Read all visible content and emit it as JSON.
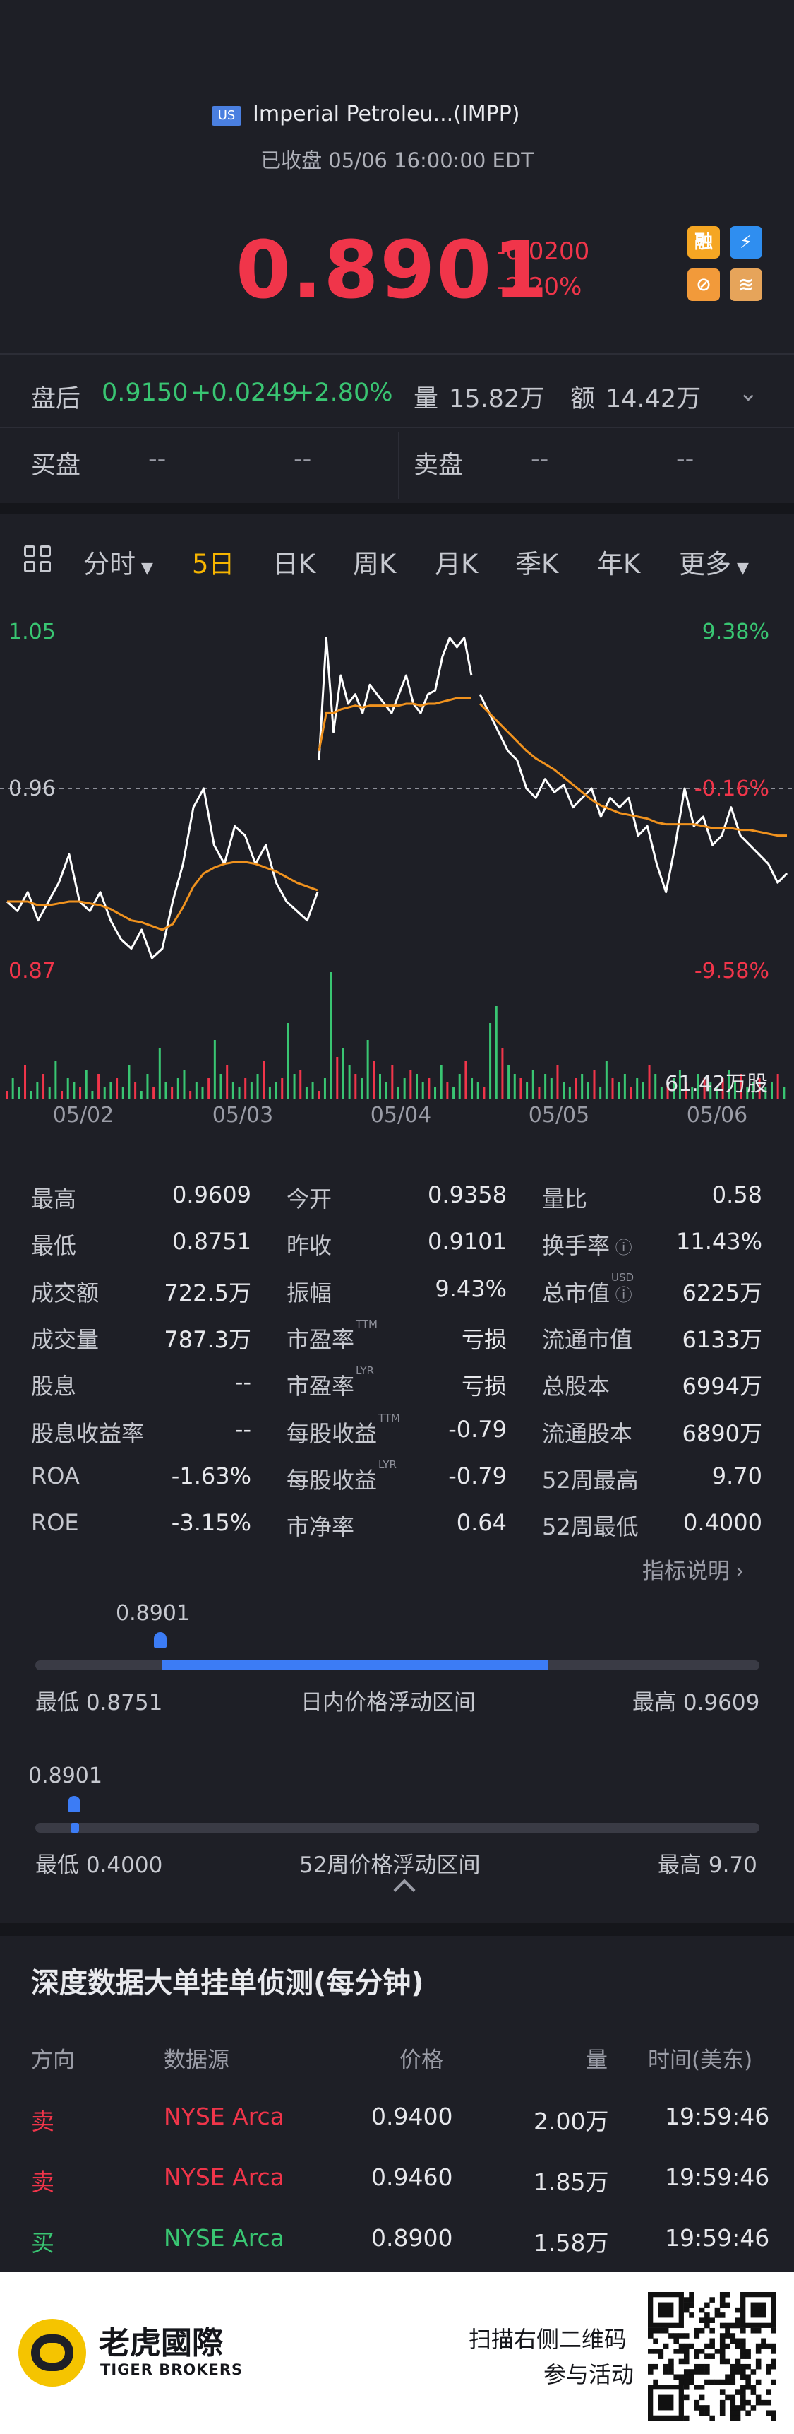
{
  "header": {
    "market": "US",
    "title": "Imperial Petroleu...(IMPP)",
    "status": "已收盘 05/06 16:00:00 EDT",
    "price": "0.8901",
    "change": "-0.0200",
    "change_pct": "-2.20%",
    "icons": [
      {
        "name": "margin-icon",
        "label": "融",
        "color": "#f5a623"
      },
      {
        "name": "lightning-icon",
        "label": "⚡",
        "color": "#2f8ef0"
      },
      {
        "name": "no-short-icon",
        "label": "⊘",
        "color": "#f29a3a"
      },
      {
        "name": "stack-icon",
        "label": "≋",
        "color": "#e6a45a"
      }
    ]
  },
  "after_hours": {
    "label": "盘后",
    "price": "0.9150",
    "change": "+0.0249",
    "change_pct": "+2.80%",
    "volume_label": "量",
    "volume": "15.82万",
    "amount_label": "额",
    "amount": "14.42万"
  },
  "order_book": {
    "bid_label": "买盘",
    "bid_values": [
      "--",
      "--"
    ],
    "ask_label": "卖盘",
    "ask_values": [
      "--",
      "--"
    ]
  },
  "tabs": [
    {
      "label": "分时",
      "has_dropdown": true,
      "active": false
    },
    {
      "label": "5日",
      "active": true
    },
    {
      "label": "日K",
      "active": false
    },
    {
      "label": "周K",
      "active": false
    },
    {
      "label": "月K",
      "active": false
    },
    {
      "label": "季K",
      "active": false
    },
    {
      "label": "年K",
      "active": false
    },
    {
      "label": "更多",
      "has_dropdown": true,
      "active": false
    }
  ],
  "chart_data": {
    "type": "line",
    "ylim": [
      0.87,
      1.05
    ],
    "y_left_labels": [
      "1.05",
      "0.96",
      "0.87"
    ],
    "y_right_labels": [
      "9.38%",
      "-0.16%",
      "-9.58%"
    ],
    "ref_value": 0.96,
    "x_labels": [
      "05/02",
      "05/03",
      "05/04",
      "05/05",
      "05/06"
    ],
    "days": [
      {
        "price": [
          0.9,
          0.895,
          0.905,
          0.89,
          0.9,
          0.91,
          0.925,
          0.9,
          0.895,
          0.905,
          0.89,
          0.88,
          0.875,
          0.885,
          0.87,
          0.875,
          0.9,
          0.92,
          0.95,
          0.96,
          0.93,
          0.92,
          0.94,
          0.935,
          0.92,
          0.93,
          0.91,
          0.9,
          0.895,
          0.89,
          0.905
        ],
        "avg": [
          0.9,
          0.9,
          0.9,
          0.898,
          0.898,
          0.899,
          0.9,
          0.9,
          0.899,
          0.898,
          0.896,
          0.893,
          0.89,
          0.889,
          0.887,
          0.885,
          0.888,
          0.897,
          0.908,
          0.915,
          0.918,
          0.92,
          0.921,
          0.921,
          0.92,
          0.918,
          0.916,
          0.913,
          0.91,
          0.908,
          0.906
        ]
      },
      {
        "price": [
          0.975,
          1.04,
          0.99,
          1.02,
          1.005,
          1.01,
          1.0,
          1.015,
          1.01,
          1.005,
          1.0,
          1.01,
          1.02,
          1.005,
          1.0,
          1.01,
          1.012,
          1.03,
          1.04,
          1.035,
          1.04,
          1.02
        ],
        "avg": [
          0.98,
          1.0,
          1.0,
          1.002,
          1.003,
          1.004,
          1.003,
          1.004,
          1.004,
          1.004,
          1.004,
          1.004,
          1.005,
          1.005,
          1.004,
          1.005,
          1.005,
          1.006,
          1.007,
          1.008,
          1.008,
          1.008
        ]
      },
      {
        "price": [
          1.01,
          1.0,
          0.99,
          0.98,
          0.975,
          0.96,
          0.955,
          0.965,
          0.958,
          0.962,
          0.95,
          0.955,
          0.96,
          0.945,
          0.955,
          0.95,
          0.955,
          0.935,
          0.94,
          0.92,
          0.905,
          0.93,
          0.96,
          0.94,
          0.945,
          0.93,
          0.935,
          0.95,
          0.935,
          0.93,
          0.925,
          0.92,
          0.91,
          0.915
        ],
        "avg": [
          1.005,
          1.0,
          0.995,
          0.99,
          0.985,
          0.98,
          0.976,
          0.973,
          0.97,
          0.966,
          0.962,
          0.958,
          0.954,
          0.951,
          0.949,
          0.947,
          0.946,
          0.945,
          0.944,
          0.942,
          0.941,
          0.941,
          0.941,
          0.941,
          0.94,
          0.939,
          0.939,
          0.939,
          0.938,
          0.938,
          0.937,
          0.936,
          0.935,
          0.935
        ]
      }
    ],
    "volume_label": "61.42万股",
    "volume_bars": [
      2,
      5,
      3,
      8,
      2,
      4,
      6,
      3,
      9,
      2,
      5,
      4,
      3,
      7,
      2,
      6,
      3,
      4,
      5,
      3,
      8,
      4,
      2,
      6,
      3,
      12,
      4,
      3,
      5,
      7,
      2,
      4,
      3,
      5,
      14,
      6,
      8,
      4,
      3,
      5,
      4,
      6,
      9,
      3,
      4,
      5,
      18,
      6,
      7,
      3,
      4,
      2,
      5,
      30,
      10,
      12,
      8,
      6,
      5,
      14,
      9,
      6,
      4,
      8,
      3,
      5,
      7,
      6,
      4,
      5,
      3,
      8,
      4,
      3,
      6,
      9,
      5,
      4,
      3,
      18,
      22,
      12,
      8,
      6,
      5,
      4,
      7,
      3,
      6,
      5,
      8,
      4,
      3,
      5,
      6,
      4,
      7,
      3,
      9,
      5,
      4,
      6,
      3,
      5,
      4,
      8,
      6,
      3,
      4,
      5,
      7,
      4,
      3,
      6,
      5,
      4,
      3,
      5,
      7,
      4,
      6,
      3,
      4,
      5,
      3,
      4,
      6,
      3
    ]
  },
  "stats": [
    [
      {
        "label": "最高",
        "value": "0.9609"
      },
      {
        "label": "今开",
        "value": "0.9358"
      },
      {
        "label": "量比",
        "value": "0.58"
      }
    ],
    [
      {
        "label": "最低",
        "value": "0.8751"
      },
      {
        "label": "昨收",
        "value": "0.9101"
      },
      {
        "label": "换手率",
        "value": "11.43%",
        "info": true
      }
    ],
    [
      {
        "label": "成交额",
        "value": "722.5万"
      },
      {
        "label": "振幅",
        "value": "9.43%"
      },
      {
        "label": "总市值",
        "value": "6225万",
        "sup": "USD",
        "info": true
      }
    ],
    [
      {
        "label": "成交量",
        "value": "787.3万"
      },
      {
        "label": "市盈率",
        "value": "亏损",
        "sup": "TTM"
      },
      {
        "label": "流通市值",
        "value": "6133万"
      }
    ],
    [
      {
        "label": "股息",
        "value": "--"
      },
      {
        "label": "市盈率",
        "value": "亏损",
        "sup": "LYR"
      },
      {
        "label": "总股本",
        "value": "6994万"
      }
    ],
    [
      {
        "label": "股息收益率",
        "value": "--"
      },
      {
        "label": "每股收益",
        "value": "-0.79",
        "sup": "TTM"
      },
      {
        "label": "流通股本",
        "value": "6890万"
      }
    ],
    [
      {
        "label": "ROA",
        "value": "-1.63%"
      },
      {
        "label": "每股收益",
        "value": "-0.79",
        "sup": "LYR"
      },
      {
        "label": "52周最高",
        "value": "9.70"
      }
    ],
    [
      {
        "label": "ROE",
        "value": "-3.15%"
      },
      {
        "label": "市净率",
        "value": "0.64"
      },
      {
        "label": "52周最低",
        "value": "0.4000"
      }
    ]
  ],
  "indicator_link": "指标说明",
  "intraday_range": {
    "current": "0.8901",
    "low_text": "最低 0.8751",
    "title": "日内价格浮动区间",
    "high_text": "最高 0.9609",
    "low": 0.8751,
    "high": 0.9609,
    "value": 0.8901,
    "open": 0.9358
  },
  "week52_range": {
    "current": "0.8901",
    "low_text": "最低 0.4000",
    "title": "52周价格浮动区间",
    "high_text": "最高 9.70",
    "low": 0.4,
    "high": 9.7,
    "value": 0.8901
  },
  "depth": {
    "title": "深度数据大单挂单侦测(每分钟)",
    "headers": [
      "方向",
      "数据源",
      "价格",
      "量",
      "时间(美东)"
    ],
    "rows": [
      {
        "side": "卖",
        "source": "NYSE Arca",
        "price": "0.9400",
        "qty": "2.00万",
        "time": "19:59:46",
        "color": "#f0354a"
      },
      {
        "side": "卖",
        "source": "NYSE Arca",
        "price": "0.9460",
        "qty": "1.85万",
        "time": "19:59:46",
        "color": "#f0354a"
      },
      {
        "side": "买",
        "source": "NYSE Arca",
        "price": "0.8900",
        "qty": "1.58万",
        "time": "19:59:46",
        "color": "#39c572"
      }
    ]
  },
  "footer": {
    "brand_cn": "老虎國際",
    "brand_en": "TIGER BROKERS",
    "cta_line1": "扫描右侧二维码",
    "cta_line2": "参与活动"
  }
}
